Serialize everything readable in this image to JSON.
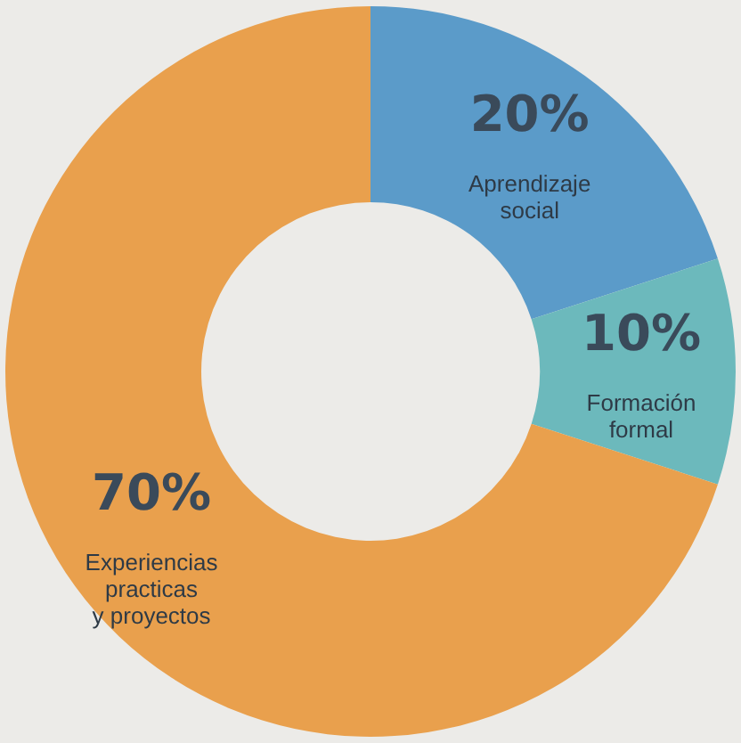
{
  "chart_data": {
    "type": "donut",
    "categories": [
      "Aprendizaje\nsocial",
      "Formación\nformal",
      "Experiencias\npracticas\ny proyectos"
    ],
    "values": [
      20,
      10,
      70
    ],
    "value_labels": [
      "20%",
      "10%",
      "70%"
    ],
    "colors": [
      "#5b9bc9",
      "#6cb9bc",
      "#e9a04d"
    ],
    "legend": false
  }
}
